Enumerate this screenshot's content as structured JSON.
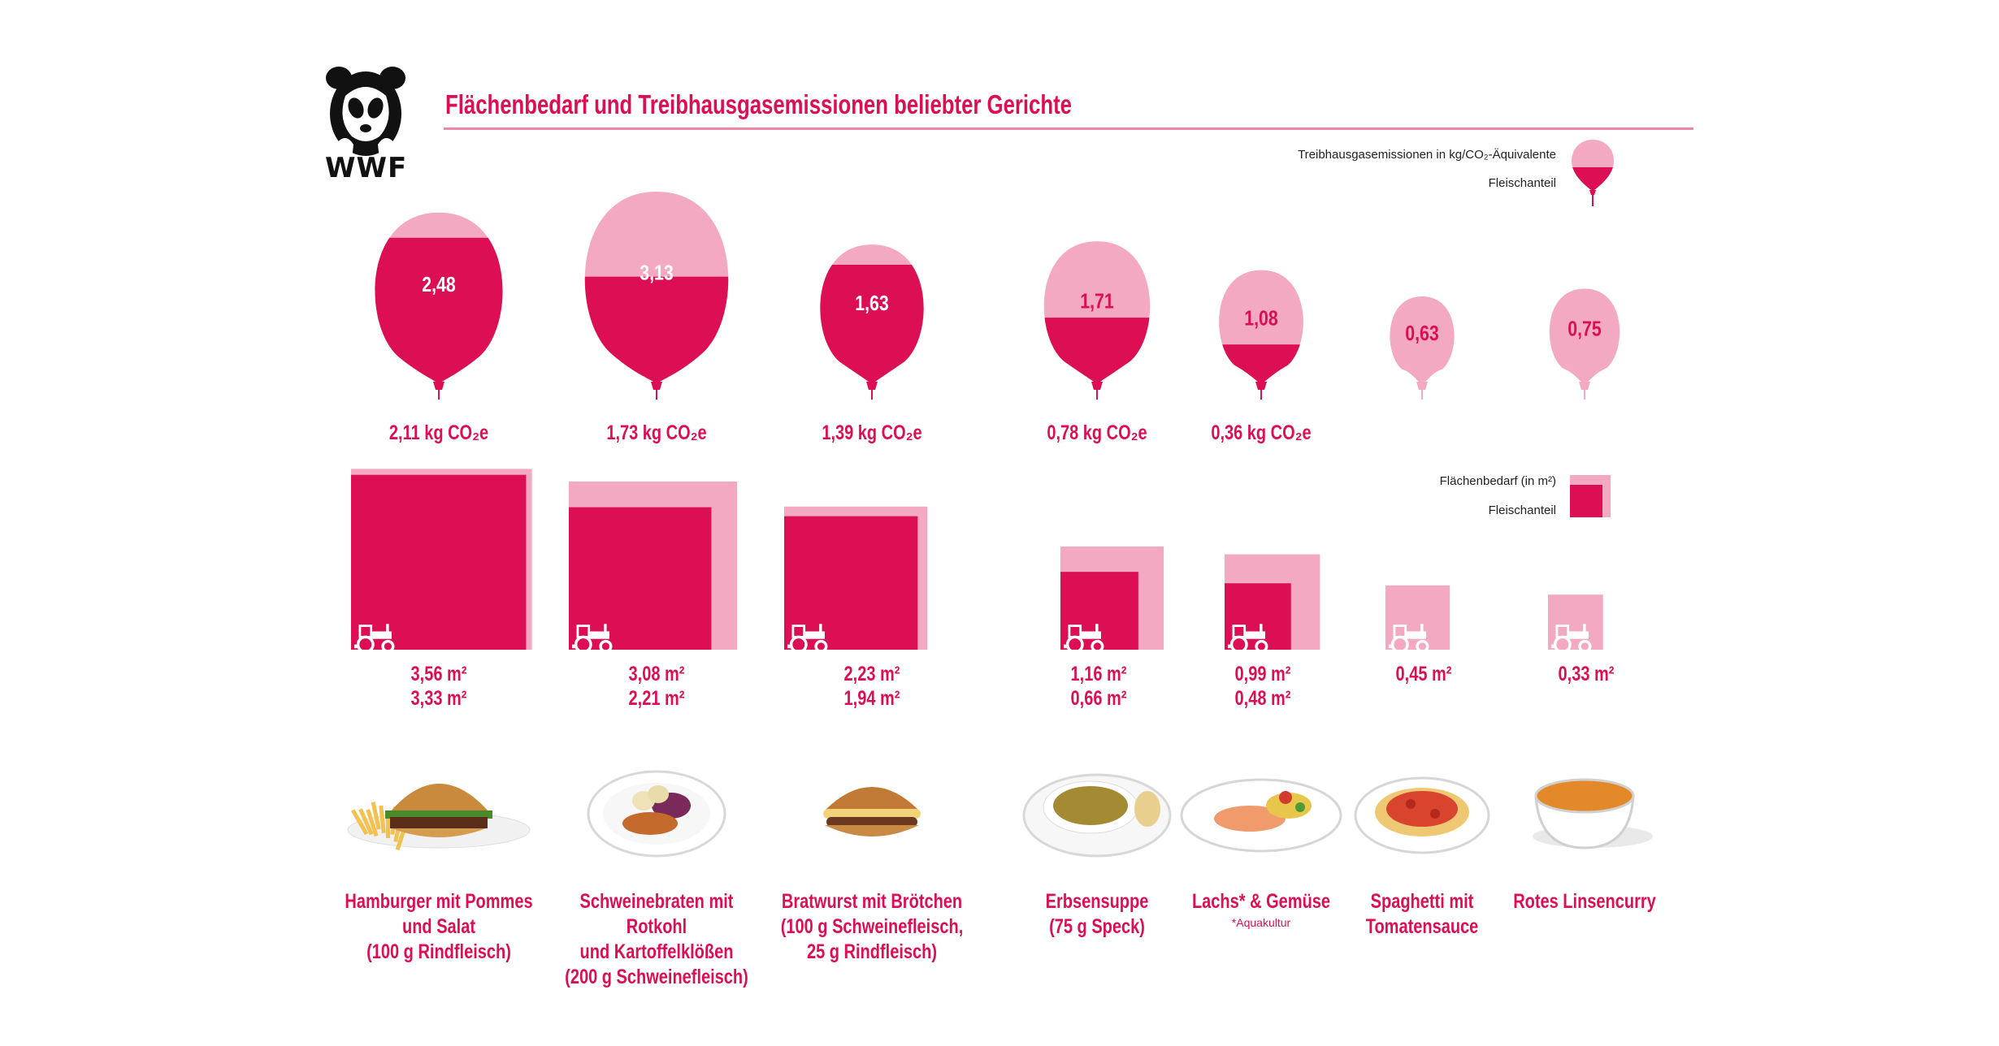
{
  "brand": {
    "logo_text": "WWF",
    "logo_icon": "panda-icon"
  },
  "title": "Flächenbedarf und Treibhausgasemissionen beliebter Gerichte",
  "colors": {
    "dark": "#dc0f55",
    "light": "#f4a9c2",
    "text": "#dc0f55"
  },
  "legend": {
    "balloon": {
      "label_total": "Treibhausgasemissionen in kg/CO₂-Äquivalente",
      "label_meat": "Fleischanteil"
    },
    "square": {
      "label_total": "Flächenbedarf (in m²)",
      "label_meat": "Fleischanteil"
    }
  },
  "chart_data": [
    {
      "type": "bar",
      "title": "",
      "unit": "kg CO₂e",
      "categories": [
        "Hamburger mit Pommes und Salat (100 g Rindfleisch)",
        "Schweinebraten mit Rotkohl und Kartoffelklößen (200 g Schweinefleisch)",
        "Bratwurst mit Brötchen (100 g Schweinefleisch, 25 g Rindfleisch)",
        "Erbsensuppe (75 g Speck)",
        "Lachs* & Gemüse",
        "Spaghetti mit Tomatensauce",
        "Rotes Linsencurry"
      ],
      "series": [
        {
          "name": "Treibhausgasemissionen in kg/CO₂-Äquivalente",
          "values": [
            2.48,
            3.13,
            1.63,
            1.71,
            1.08,
            0.63,
            0.75
          ],
          "labels": [
            "2,48",
            "3,13",
            "1,63",
            "1,71",
            "1,08",
            "0,63",
            "0,75"
          ]
        },
        {
          "name": "Fleischanteil",
          "values": [
            2.11,
            1.73,
            1.39,
            0.78,
            0.36,
            0,
            0
          ],
          "labels": [
            "2,11 kg CO₂e",
            "1,73 kg CO₂e",
            "1,39 kg CO₂e",
            "0,78 kg CO₂e",
            "0,36 kg CO₂e",
            "",
            ""
          ]
        }
      ]
    },
    {
      "type": "bar",
      "title": "",
      "unit": "m²",
      "categories": [
        "Hamburger mit Pommes und Salat (100 g Rindfleisch)",
        "Schweinebraten mit Rotkohl und Kartoffelklößen (200 g Schweinefleisch)",
        "Bratwurst mit Brötchen (100 g Schweinefleisch, 25 g Rindfleisch)",
        "Erbsensuppe (75 g Speck)",
        "Lachs* & Gemüse",
        "Spaghetti mit Tomatensauce",
        "Rotes Linsencurry"
      ],
      "series": [
        {
          "name": "Flächenbedarf (in m²)",
          "values": [
            3.56,
            3.08,
            2.23,
            1.16,
            0.99,
            0.45,
            0.33
          ],
          "labels": [
            "3,56 m²",
            "3,08 m²",
            "2,23 m²",
            "1,16 m²",
            "0,99 m²",
            "0,45 m²",
            "0,33 m²"
          ]
        },
        {
          "name": "Fleischanteil",
          "values": [
            3.33,
            2.21,
            1.94,
            0.66,
            0.48,
            0,
            0
          ],
          "labels": [
            "3,33 m²",
            "2,21 m²",
            "1,94 m²",
            "0,66 m²",
            "0,48 m²",
            "",
            ""
          ]
        }
      ]
    }
  ],
  "dishes": [
    {
      "lines": [
        "Hamburger mit Pommes",
        "und Salat",
        "(100 g Rindfleisch)"
      ],
      "note": "",
      "icon": "hamburger-icon"
    },
    {
      "lines": [
        "Schweinebraten mit Rotkohl",
        "und Kartoffelklößen",
        "(200 g Schweinefleisch)"
      ],
      "note": "",
      "icon": "roast-plate-icon"
    },
    {
      "lines": [
        "Bratwurst mit Brötchen",
        "(100 g Schweinefleisch,",
        "25 g Rindfleisch)"
      ],
      "note": "",
      "icon": "bratwurst-icon"
    },
    {
      "lines": [
        "Erbsensuppe",
        "(75 g Speck)"
      ],
      "note": "",
      "icon": "soup-bowl-icon"
    },
    {
      "lines": [
        "Lachs* & Gemüse"
      ],
      "note": "*Aquakultur",
      "icon": "salmon-plate-icon"
    },
    {
      "lines": [
        "Spaghetti mit",
        "Tomatensauce"
      ],
      "note": "",
      "icon": "spaghetti-plate-icon"
    },
    {
      "lines": [
        "Rotes Linsencurry"
      ],
      "note": "",
      "icon": "curry-bowl-icon"
    }
  ],
  "tractor_icon": "tractor-icon"
}
